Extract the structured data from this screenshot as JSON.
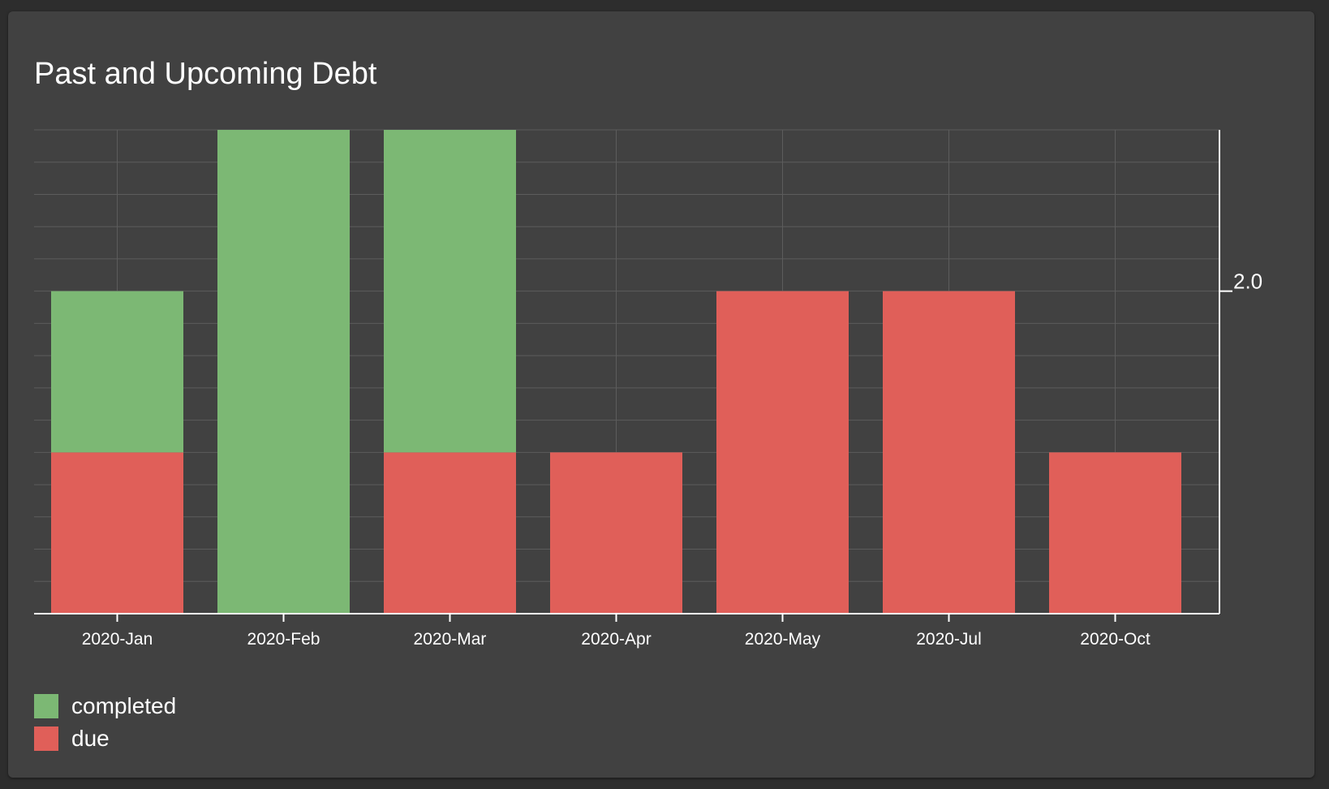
{
  "card": {
    "title": "Past and Upcoming Debt"
  },
  "chart_data": {
    "type": "bar",
    "stacked": true,
    "title": "Past and Upcoming Debt",
    "categories": [
      "2020-Jan",
      "2020-Feb",
      "2020-Mar",
      "2020-Apr",
      "2020-May",
      "2020-Jul",
      "2020-Oct"
    ],
    "series": [
      {
        "name": "due",
        "color": "#e05f59",
        "values": [
          1,
          0,
          1,
          1,
          2,
          2,
          1
        ]
      },
      {
        "name": "completed",
        "color": "#7cb874",
        "values": [
          1,
          3,
          2,
          0,
          0,
          0,
          0
        ]
      }
    ],
    "ylim": [
      0,
      3
    ],
    "y_ticks": [
      2
    ],
    "y_tick_labels": [
      "2.0"
    ],
    "y_axis_side": "right",
    "grid": true,
    "legend_position": "bottom-left",
    "colors": {
      "completed": "#7cb874",
      "due": "#e05f59"
    }
  }
}
